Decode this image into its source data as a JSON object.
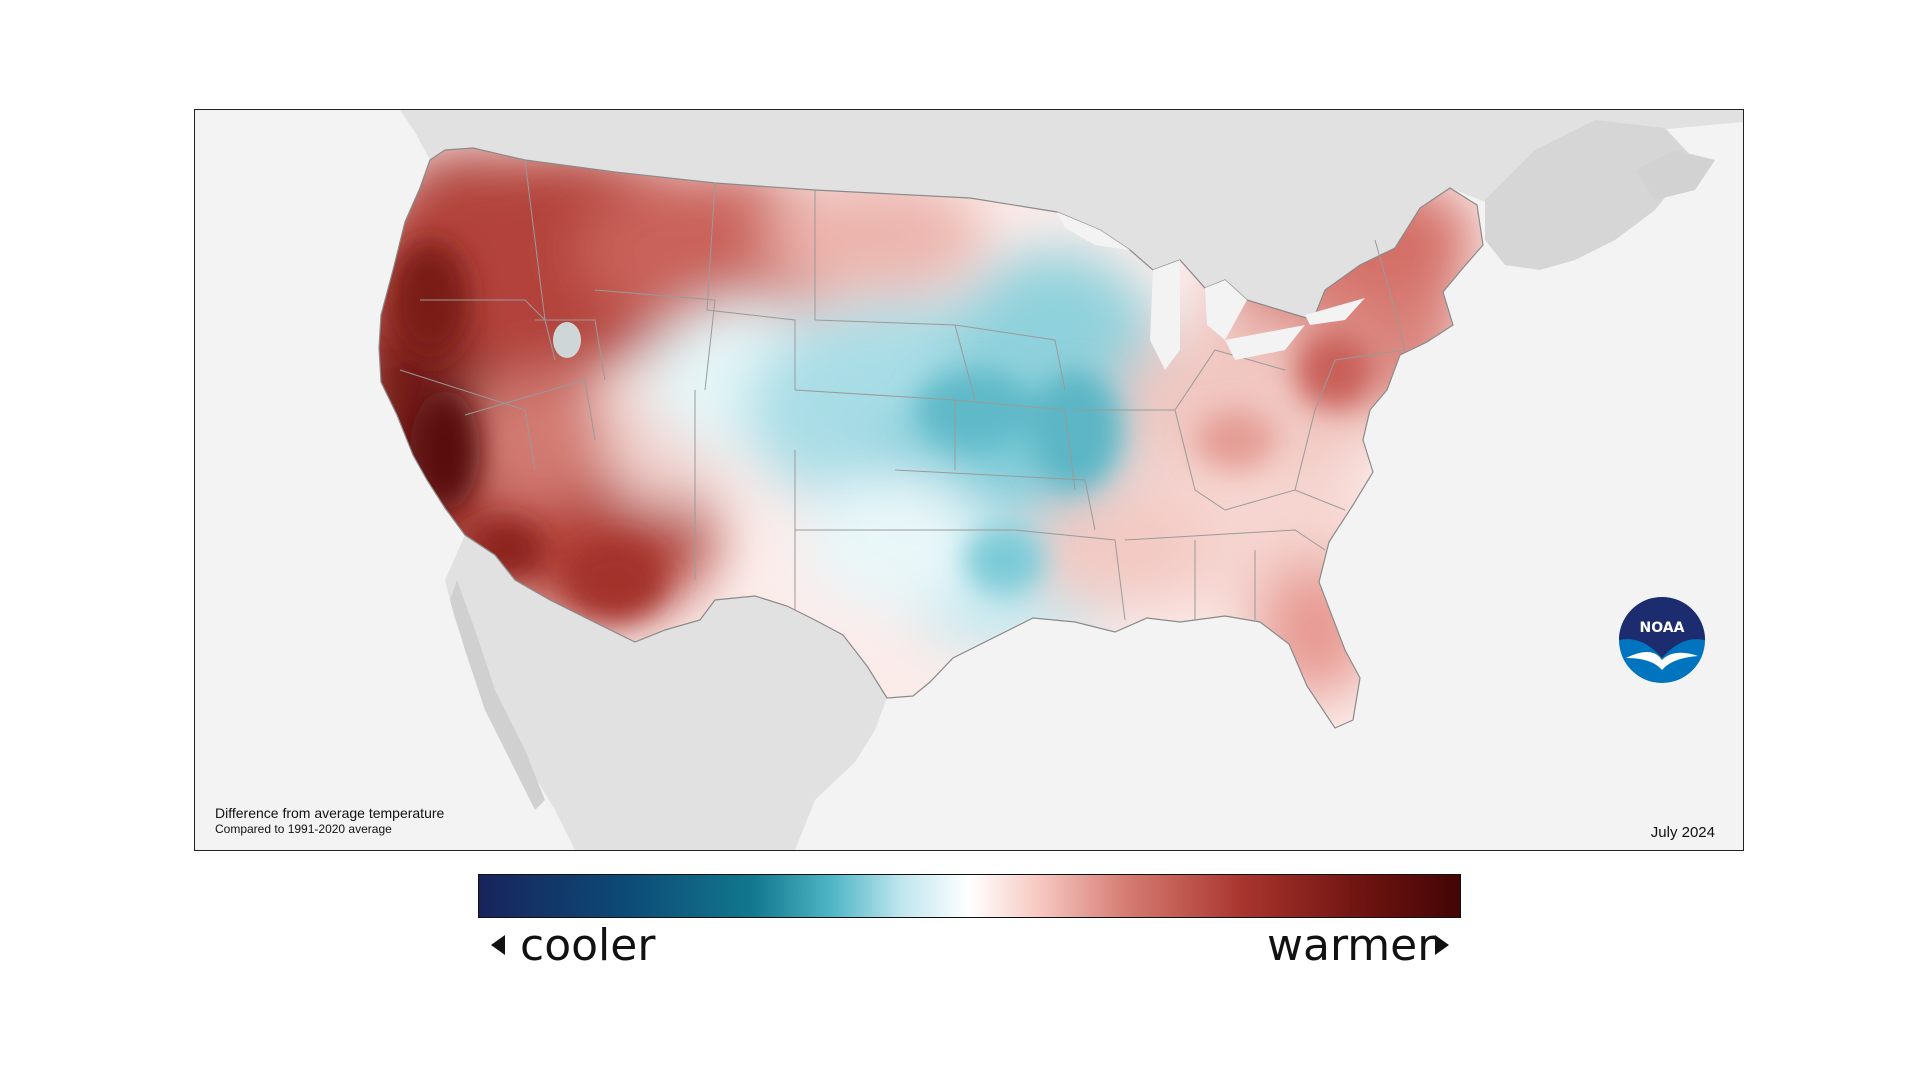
{
  "map": {
    "caption_main": "Difference from average temperature",
    "caption_sub": "Compared to 1991-2020 average",
    "date": "July 2024",
    "logo_text": "NOAA",
    "land_color": "#e1e1e1",
    "ocean_color": "#f3f3f3",
    "border_color": "#9a9a9a"
  },
  "legend": {
    "left_label": "cooler",
    "right_label": "warmer",
    "scale_colors": [
      "#18245c",
      "#12788f",
      "#bfe6ee",
      "#ffffff",
      "#f6c9c2",
      "#a8342d",
      "#420505"
    ]
  }
}
